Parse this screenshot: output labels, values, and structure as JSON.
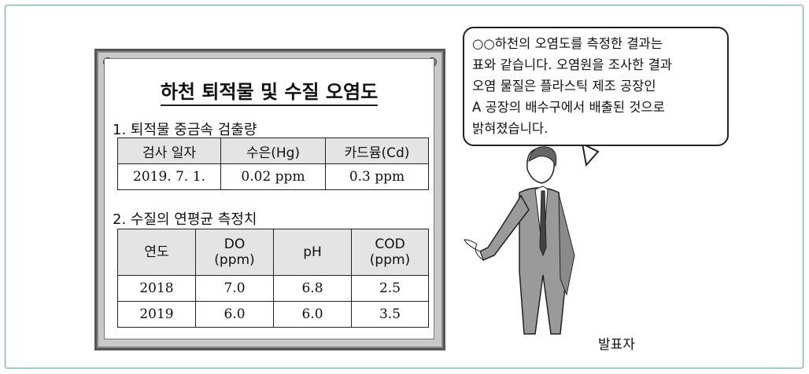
{
  "board": {
    "title": "하천 퇴적물 및 수질 오염도",
    "section1": {
      "heading": "1. 퇴적물 중금속 검출량",
      "header": [
        "검사 일자",
        "수은(Hg)",
        "카드뮴(Cd)"
      ],
      "rows": [
        [
          "2019. 7. 1.",
          "0.02 ppm",
          "0.3 ppm"
        ]
      ]
    },
    "section2": {
      "heading": "2. 수질의 연평균 측정치",
      "header": [
        "연도",
        [
          "DO",
          "(ppm)"
        ],
        "pH",
        [
          "COD",
          "(ppm)"
        ]
      ],
      "rows": [
        [
          "2018",
          "7.0",
          "6.8",
          "2.5"
        ],
        [
          "2019",
          "6.0",
          "6.0",
          "3.5"
        ]
      ]
    }
  },
  "speech": {
    "lines": [
      "○○하천의 오염도를 측정한 결과는",
      "표와 같습니다. 오염원을 조사한 결과",
      "오염 물질은 플라스틱 제조 공장인",
      "A 공장의 배수구에서 배출된 것으로",
      "밝혀졌습니다."
    ]
  },
  "speaker_label": "발표자"
}
